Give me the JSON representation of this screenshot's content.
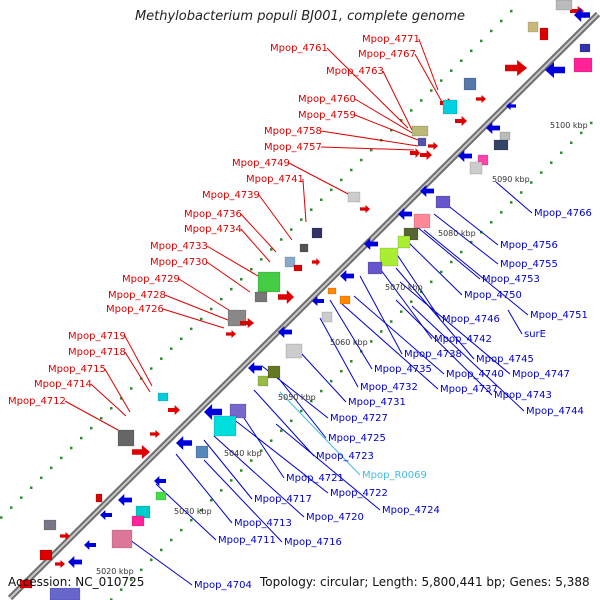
{
  "title": "Methylobacterium populi BJ001, complete genome",
  "footer": {
    "accession": "Accession: NC_010725",
    "stats": "Topology: circular; Length: 5,800,441 bp; Genes: 5,388"
  },
  "colors": {
    "forward_label": "#dd0000",
    "reverse_label": "#0000cc",
    "rna_label": "#44bbdd",
    "backbone": "#8a8a8a",
    "tick_dots": "#339933"
  },
  "scale_labels": [
    "5030 kbp",
    "5040 kbp",
    "5050 kbp",
    "5060 kbp",
    "5070 kbp",
    "5080 kbp",
    "5090 kbp",
    "5100 kbp",
    "5020 kbp"
  ],
  "forward_labels": [
    "Mpop_4771",
    "Mpop_4767",
    "Mpop_4761",
    "Mpop_4763",
    "Mpop_4760",
    "Mpop_4759",
    "Mpop_4758",
    "Mpop_4757",
    "Mpop_4749",
    "Mpop_4741",
    "Mpop_4739",
    "Mpop_4736",
    "Mpop_4734",
    "Mpop_4733",
    "Mpop_4730",
    "Mpop_4729",
    "Mpop_4728",
    "Mpop_4726",
    "Mpop_4719",
    "Mpop_4718",
    "Mpop_4715",
    "Mpop_4714",
    "Mpop_4712"
  ],
  "reverse_labels": [
    "Mpop_4766",
    "Mpop_4756",
    "Mpop_4755",
    "Mpop_4753",
    "Mpop_4750",
    "Mpop_4751",
    "surE",
    "Mpop_4746",
    "Mpop_4742",
    "Mpop_4738",
    "Mpop_4745",
    "Mpop_4747",
    "Mpop_4740",
    "Mpop_4735",
    "Mpop_4743",
    "Mpop_4737",
    "Mpop_4732",
    "Mpop_4744",
    "Mpop_4731",
    "Mpop_4727",
    "Mpop_4725",
    "Mpop_4723",
    "Mpop_4721",
    "Mpop_4722",
    "Mpop_4717",
    "Mpop_4724",
    "Mpop_4720",
    "Mpop_4713",
    "Mpop_4716",
    "Mpop_4711",
    "Mpop_4704"
  ],
  "rna_labels": [
    "Mpop_R0069"
  ]
}
